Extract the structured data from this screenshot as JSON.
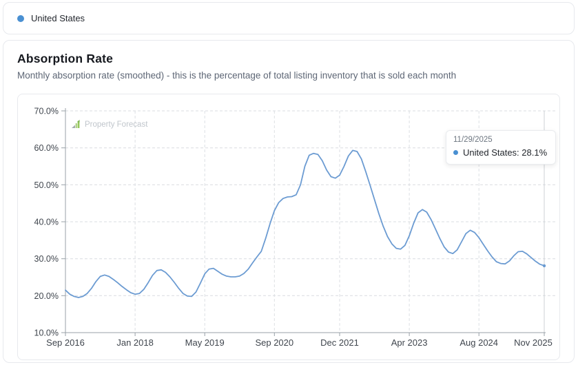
{
  "legend_bar": {
    "items": [
      {
        "label": "United States",
        "color": "#4a90d2"
      }
    ]
  },
  "card": {
    "title": "Absorption Rate",
    "subtitle": "Monthly absorption rate (smoothed) - this is the percentage of total listing inventory that is sold each month"
  },
  "watermark": {
    "label": "Property Forecast"
  },
  "tooltip": {
    "date": "11/29/2025",
    "series_label": "United States",
    "value": "28.1%",
    "text": "United States: 28.1%",
    "dot_color": "#4a90d2"
  },
  "chart_data": {
    "type": "line",
    "title": "Absorption Rate",
    "xlabel": "",
    "ylabel": "",
    "unit": "%",
    "ylim": [
      10,
      70
    ],
    "grid": "dashed",
    "legend_position": "top-bar",
    "y_ticks": [
      {
        "value": 10,
        "label": "10.0%"
      },
      {
        "value": 20,
        "label": "20.0%"
      },
      {
        "value": 30,
        "label": "30.0%"
      },
      {
        "value": 40,
        "label": "40.0%"
      },
      {
        "value": 50,
        "label": "50.0%"
      },
      {
        "value": 60,
        "label": "60.0%"
      },
      {
        "value": 70,
        "label": "70.0%"
      }
    ],
    "x_ticks": [
      {
        "index": 0,
        "label": "Sep 2016"
      },
      {
        "index": 16,
        "label": "Jan 2018"
      },
      {
        "index": 32,
        "label": "May 2019"
      },
      {
        "index": 48,
        "label": "Sep 2020"
      },
      {
        "index": 63,
        "label": "Dec 2021"
      },
      {
        "index": 79,
        "label": "Apr 2023"
      },
      {
        "index": 95,
        "label": "Aug 2024"
      },
      {
        "index": 110,
        "label": "Nov 2025"
      }
    ],
    "series": [
      {
        "name": "United States",
        "color": "#6b9bd2",
        "x_start": "2016-09",
        "x_end": "2025-11",
        "interval": "monthly",
        "values": [
          21.5,
          20.4,
          19.8,
          19.5,
          19.8,
          20.6,
          22.0,
          23.8,
          25.2,
          25.6,
          25.2,
          24.4,
          23.5,
          22.5,
          21.6,
          20.8,
          20.4,
          20.6,
          21.7,
          23.5,
          25.5,
          26.8,
          27.0,
          26.3,
          25.1,
          23.6,
          22.0,
          20.6,
          19.9,
          19.8,
          21.0,
          23.4,
          25.9,
          27.2,
          27.4,
          26.6,
          25.8,
          25.3,
          25.1,
          25.1,
          25.3,
          26.0,
          27.2,
          28.9,
          30.5,
          32.0,
          35.5,
          39.5,
          43.0,
          45.2,
          46.3,
          46.7,
          46.8,
          47.3,
          50.0,
          55.0,
          58.0,
          58.5,
          58.2,
          56.5,
          54.0,
          52.2,
          51.8,
          52.6,
          55.0,
          57.8,
          59.3,
          59.0,
          57.0,
          53.5,
          49.8,
          46.0,
          42.2,
          38.8,
          36.0,
          34.0,
          32.8,
          32.6,
          33.6,
          36.2,
          39.6,
          42.4,
          43.3,
          42.6,
          40.6,
          38.1,
          35.5,
          33.2,
          31.8,
          31.4,
          32.4,
          34.6,
          36.8,
          37.7,
          37.1,
          35.7,
          33.9,
          32.1,
          30.5,
          29.2,
          28.7,
          28.6,
          29.4,
          30.8,
          31.9,
          32.0,
          31.3,
          30.3,
          29.3,
          28.5,
          28.1
        ]
      }
    ],
    "hover": {
      "index": 110,
      "date": "11/29/2025",
      "value": 28.1
    }
  }
}
